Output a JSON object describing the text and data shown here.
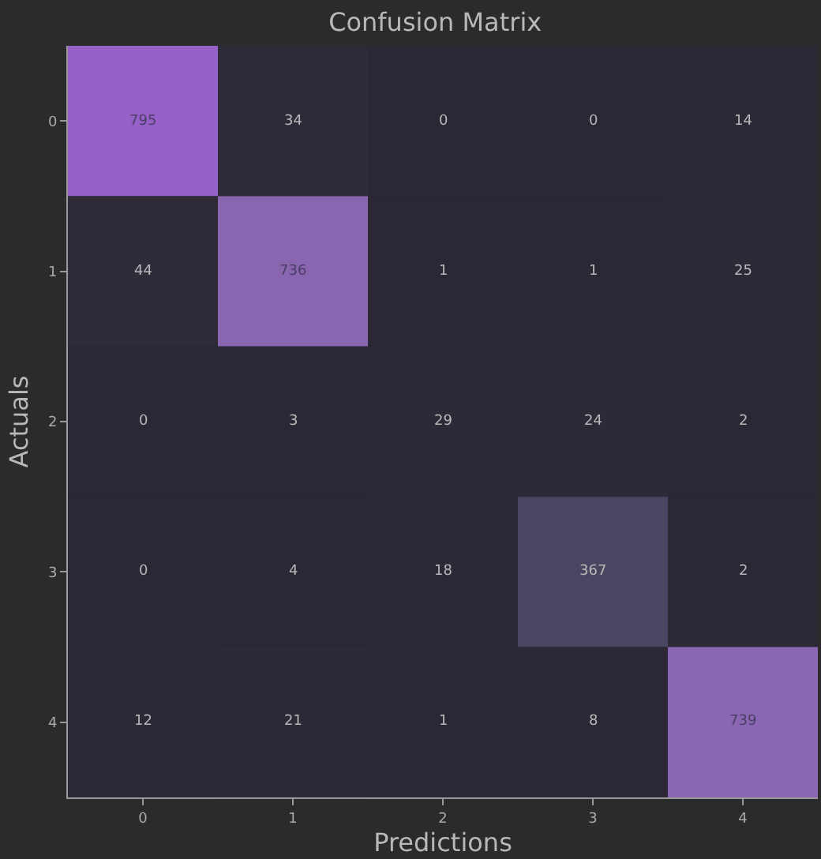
{
  "chart_data": {
    "type": "heatmap",
    "title": "Confusion Matrix",
    "xlabel": "Predictions",
    "ylabel": "Actuals",
    "categories": [
      "0",
      "1",
      "2",
      "3",
      "4"
    ],
    "y_categories": [
      "0",
      "1",
      "2",
      "3",
      "4"
    ],
    "cells": [
      [
        795,
        34,
        0,
        0,
        14
      ],
      [
        44,
        736,
        1,
        1,
        25
      ],
      [
        0,
        3,
        29,
        24,
        2
      ],
      [
        0,
        4,
        18,
        367,
        2
      ],
      [
        12,
        21,
        1,
        8,
        739
      ]
    ],
    "data_labels": true
  }
}
